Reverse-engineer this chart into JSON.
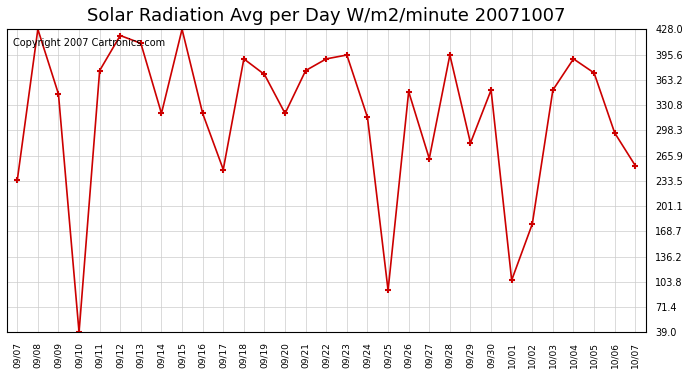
{
  "title": "Solar Radiation Avg per Day W/m2/minute 20071007",
  "copyright": "Copyright 2007 Cartronics.com",
  "labels": [
    "09/07",
    "09/08",
    "09/09",
    "09/10",
    "09/11",
    "09/12",
    "09/13",
    "09/14",
    "09/15",
    "09/16",
    "09/17",
    "09/18",
    "09/19",
    "09/20",
    "09/21",
    "09/22",
    "09/23",
    "09/24",
    "09/25",
    "09/26",
    "09/27",
    "09/28",
    "09/29",
    "09/30",
    "10/01",
    "10/02",
    "10/03",
    "10/04",
    "10/05",
    "10/06",
    "10/07"
  ],
  "values": [
    234.0,
    428.0,
    345.0,
    39.0,
    375.0,
    420.0,
    410.0,
    320.0,
    428.0,
    320.0,
    248.0,
    390.0,
    370.0,
    320.0,
    375.0,
    390.0,
    395.0,
    315.0,
    93.0,
    348.0,
    262.0,
    395.0,
    282.0,
    350.0,
    106.0,
    178.0,
    350.0,
    390.0,
    372.0,
    295.0,
    253.0
  ],
  "line_color": "#cc0000",
  "marker_color": "#cc0000",
  "bg_color": "#ffffff",
  "grid_color": "#cccccc",
  "ylim_min": 39.0,
  "ylim_max": 428.0,
  "yticks": [
    39.0,
    71.4,
    103.8,
    136.2,
    168.7,
    201.1,
    233.5,
    265.9,
    298.3,
    330.8,
    363.2,
    395.6,
    428.0
  ],
  "title_fontsize": 13,
  "copyright_fontsize": 7
}
